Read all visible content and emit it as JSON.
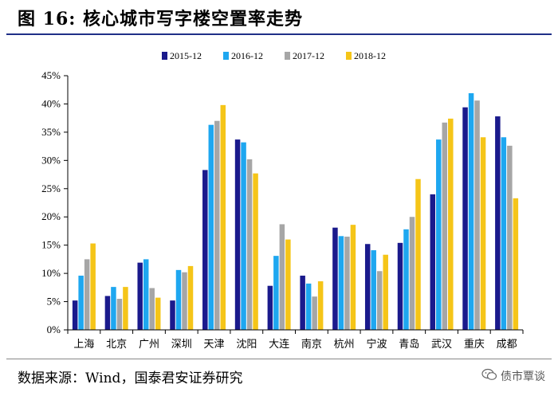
{
  "header": {
    "title": "图 16:  核心城市写字楼空置率走势"
  },
  "footer": {
    "source": "数据来源：Wind，国泰君安证券研究",
    "watermark": "债市覃谈"
  },
  "chart_data": {
    "type": "bar",
    "categories": [
      "上海",
      "北京",
      "广州",
      "深圳",
      "天津",
      "沈阳",
      "大连",
      "南京",
      "杭州",
      "宁波",
      "青岛",
      "武汉",
      "重庆",
      "成都"
    ],
    "series": [
      {
        "name": "2015-12",
        "color": "#1a1a8c",
        "values": [
          5.2,
          6.0,
          11.9,
          5.2,
          28.3,
          33.7,
          7.8,
          9.6,
          18.1,
          15.2,
          15.4,
          24.0,
          39.4,
          37.8
        ]
      },
      {
        "name": "2016-12",
        "color": "#1ea7f0",
        "values": [
          9.6,
          7.6,
          12.5,
          10.6,
          36.3,
          33.2,
          13.1,
          8.2,
          16.6,
          14.1,
          17.8,
          33.7,
          41.9,
          34.1
        ]
      },
      {
        "name": "2017-12",
        "color": "#a6a6a6",
        "values": [
          12.5,
          5.5,
          7.4,
          10.2,
          37.0,
          30.2,
          18.7,
          5.9,
          16.5,
          10.4,
          20.0,
          36.7,
          40.6,
          32.6
        ]
      },
      {
        "name": "2018-12",
        "color": "#f5c518",
        "values": [
          15.3,
          7.6,
          5.7,
          11.3,
          39.8,
          27.7,
          16.0,
          8.6,
          18.6,
          13.3,
          26.7,
          37.4,
          34.1,
          23.3
        ]
      }
    ],
    "yticks": [
      "0%",
      "5%",
      "10%",
      "15%",
      "20%",
      "25%",
      "30%",
      "35%",
      "40%",
      "45%"
    ],
    "ylim": [
      0,
      45
    ],
    "grid": false,
    "legend": "top-center",
    "xlabel": "",
    "ylabel": ""
  }
}
